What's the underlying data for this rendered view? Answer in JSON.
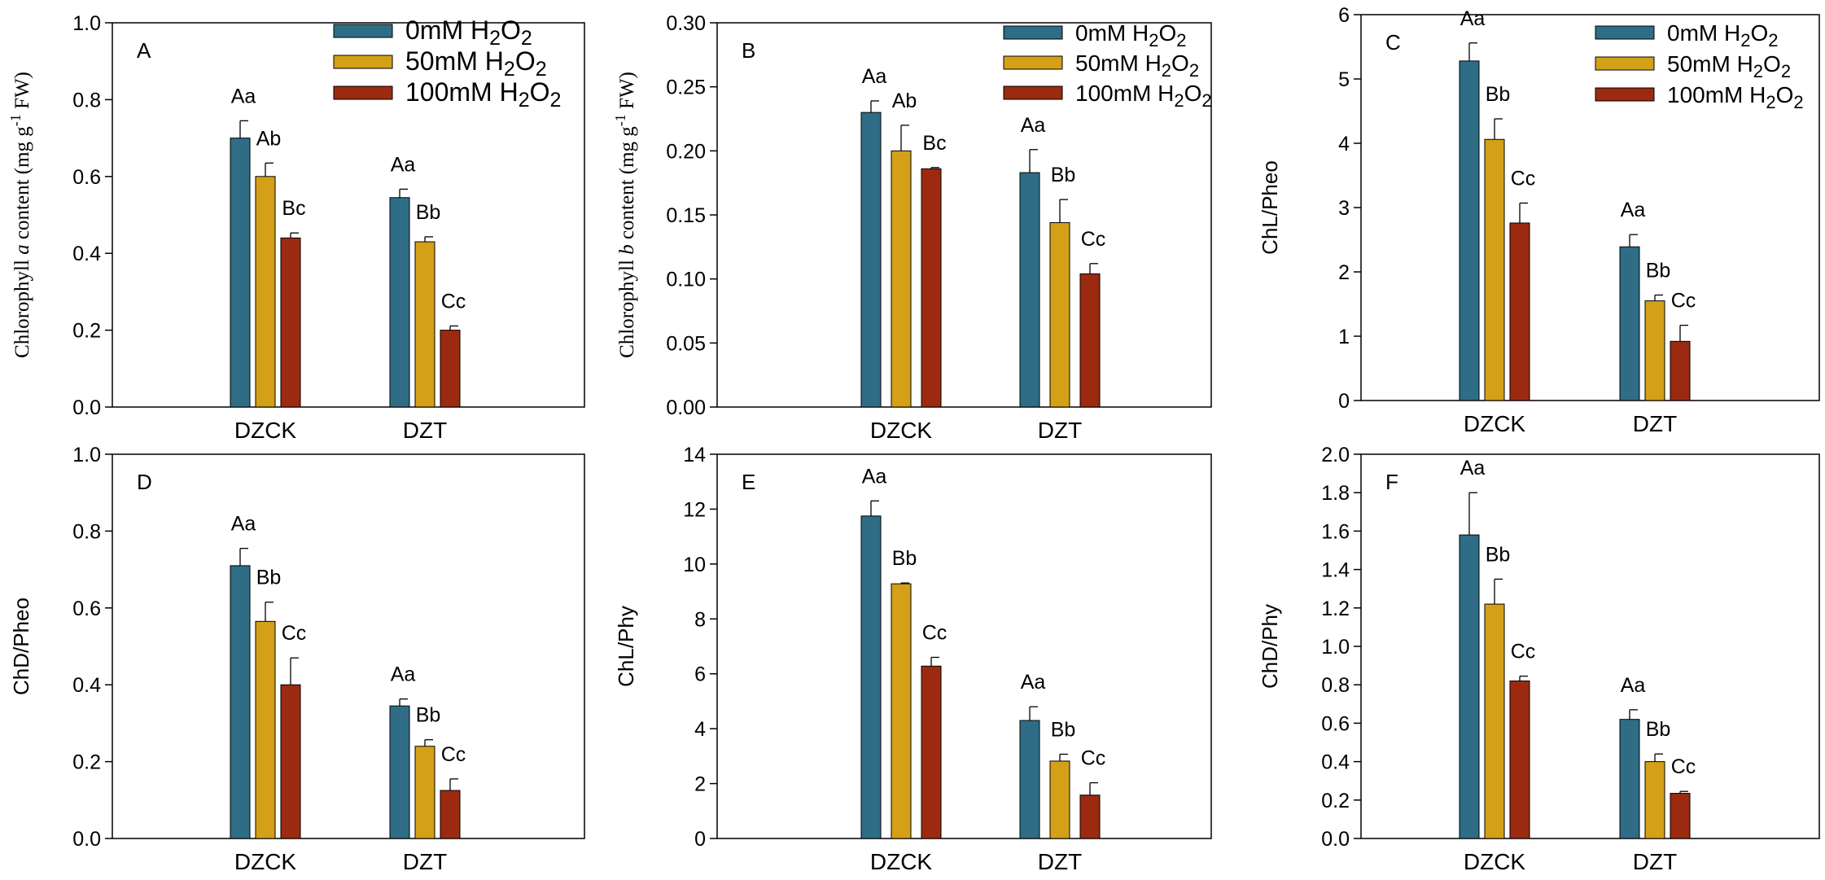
{
  "colors": {
    "c0": "#2f6d86",
    "c1": "#d4a017",
    "c2": "#9c2a10",
    "axis": "#000000"
  },
  "chart_data": [
    {
      "panel": "A",
      "type": "bar",
      "categories": [
        "DZCK",
        "DZT"
      ],
      "ylabel_parts": [
        "Chlorophyll ",
        "a",
        " content  (mg g",
        "-1",
        " FW)"
      ],
      "ylim": [
        0,
        1.0
      ],
      "yticks": [
        "0.0",
        "0.2",
        "0.4",
        "0.6",
        "0.8",
        "1.0"
      ],
      "legend": [
        {
          "prefix": "0mM H",
          "s1": "2",
          "mid": "O",
          "s2": "2"
        },
        {
          "prefix": "50mM H",
          "s1": "2",
          "mid": "O",
          "s2": "2"
        },
        {
          "prefix": "100mM H",
          "s1": "2",
          "mid": "O",
          "s2": "2"
        }
      ],
      "series": [
        {
          "name": "0mM H2O2",
          "values": [
            0.7,
            0.545
          ],
          "errors": [
            0.045,
            0.022
          ],
          "labels": [
            "Aa",
            "Aa"
          ]
        },
        {
          "name": "50mM H2O2",
          "values": [
            0.6,
            0.43
          ],
          "errors": [
            0.035,
            0.013
          ],
          "labels": [
            "Ab",
            "Bb"
          ]
        },
        {
          "name": "100mM H2O2",
          "values": [
            0.44,
            0.2
          ],
          "errors": [
            0.013,
            0.011
          ],
          "labels": [
            "Bc",
            "Cc"
          ]
        }
      ]
    },
    {
      "panel": "B",
      "type": "bar",
      "categories": [
        "DZCK",
        "DZT"
      ],
      "ylabel_parts": [
        "Chlorophyll ",
        "b",
        " content  (mg g",
        "-1",
        " FW)"
      ],
      "ylim": [
        0,
        0.3
      ],
      "yticks": [
        "0.00",
        "0.05",
        "0.10",
        "0.15",
        "0.20",
        "0.25",
        "0.30"
      ],
      "legend": [
        {
          "prefix": "0mM H",
          "s1": "2",
          "mid": "O",
          "s2": "2"
        },
        {
          "prefix": "50mM H",
          "s1": "2",
          "mid": "O",
          "s2": "2"
        },
        {
          "prefix": "100mM H",
          "s1": "2",
          "mid": "O",
          "s2": "2"
        }
      ],
      "series": [
        {
          "name": "0mM H2O2",
          "values": [
            0.23,
            0.183
          ],
          "errors": [
            0.009,
            0.018
          ],
          "labels": [
            "Aa",
            "Aa"
          ]
        },
        {
          "name": "50mM H2O2",
          "values": [
            0.2,
            0.144
          ],
          "errors": [
            0.02,
            0.018
          ],
          "labels": [
            "Ab",
            "Bb"
          ]
        },
        {
          "name": "100mM H2O2",
          "values": [
            0.186,
            0.104
          ],
          "errors": [
            0.001,
            0.008
          ],
          "labels": [
            "Bc",
            "Cc"
          ]
        }
      ]
    },
    {
      "panel": "C",
      "type": "bar",
      "categories": [
        "DZCK",
        "DZT"
      ],
      "ylabel_parts": [
        "ChL/Pheo"
      ],
      "ylim": [
        0,
        6
      ],
      "yticks": [
        "0",
        "1",
        "2",
        "3",
        "4",
        "5",
        "6"
      ],
      "legend": [
        {
          "prefix": "0mM H",
          "s1": "2",
          "mid": "O",
          "s2": "2"
        },
        {
          "prefix": "50mM H",
          "s1": "2",
          "mid": "O",
          "s2": "2"
        },
        {
          "prefix": "100mM H",
          "s1": "2",
          "mid": "O",
          "s2": "2"
        }
      ],
      "series": [
        {
          "name": "0mM H2O2",
          "values": [
            5.28,
            2.39
          ],
          "errors": [
            0.28,
            0.19
          ],
          "labels": [
            "Aa",
            "Aa"
          ]
        },
        {
          "name": "50mM H2O2",
          "values": [
            4.06,
            1.55
          ],
          "errors": [
            0.32,
            0.09
          ],
          "labels": [
            "Bb",
            "Bb"
          ]
        },
        {
          "name": "100mM H2O2",
          "values": [
            2.76,
            0.92
          ],
          "errors": [
            0.31,
            0.25
          ],
          "labels": [
            "Cc",
            "Cc"
          ]
        }
      ]
    },
    {
      "panel": "D",
      "type": "bar",
      "categories": [
        "DZCK",
        "DZT"
      ],
      "ylabel_parts": [
        "ChD/Pheo"
      ],
      "ylim": [
        0,
        1.0
      ],
      "yticks": [
        "0.0",
        "0.2",
        "0.4",
        "0.6",
        "0.8",
        "1.0"
      ],
      "legend": [],
      "series": [
        {
          "name": "0mM H2O2",
          "values": [
            0.71,
            0.345
          ],
          "errors": [
            0.045,
            0.018
          ],
          "labels": [
            "Aa",
            "Aa"
          ]
        },
        {
          "name": "50mM H2O2",
          "values": [
            0.565,
            0.24
          ],
          "errors": [
            0.05,
            0.017
          ],
          "labels": [
            "Bb",
            "Bb"
          ]
        },
        {
          "name": "100mM H2O2",
          "values": [
            0.4,
            0.125
          ],
          "errors": [
            0.07,
            0.03
          ],
          "labels": [
            "Cc",
            "Cc"
          ]
        }
      ]
    },
    {
      "panel": "E",
      "type": "bar",
      "categories": [
        "DZCK",
        "DZT"
      ],
      "ylabel_parts": [
        "ChL/Phy"
      ],
      "ylim": [
        0,
        14
      ],
      "yticks": [
        "0",
        "2",
        "4",
        "6",
        "8",
        "10",
        "12",
        "14"
      ],
      "legend": [],
      "series": [
        {
          "name": "0mM H2O2",
          "values": [
            11.75,
            4.3
          ],
          "errors": [
            0.55,
            0.5
          ],
          "labels": [
            "Aa",
            "Aa"
          ]
        },
        {
          "name": "50mM H2O2",
          "values": [
            9.28,
            2.82
          ],
          "errors": [
            0.03,
            0.25
          ],
          "labels": [
            "Bb",
            "Bb"
          ]
        },
        {
          "name": "100mM H2O2",
          "values": [
            6.28,
            1.58
          ],
          "errors": [
            0.32,
            0.45
          ],
          "labels": [
            "Cc",
            "Cc"
          ]
        }
      ]
    },
    {
      "panel": "F",
      "type": "bar",
      "categories": [
        "DZCK",
        "DZT"
      ],
      "ylabel_parts": [
        "ChD/Phy"
      ],
      "ylim": [
        0,
        2.0
      ],
      "yticks": [
        "0.0",
        "0.2",
        "0.4",
        "0.6",
        "0.8",
        "1.0",
        "1.2",
        "1.4",
        "1.6",
        "1.8",
        "2.0"
      ],
      "legend": [],
      "series": [
        {
          "name": "0mM H2O2",
          "values": [
            1.58,
            0.62
          ],
          "errors": [
            0.22,
            0.05
          ],
          "labels": [
            "Aa",
            "Aa"
          ]
        },
        {
          "name": "50mM H2O2",
          "values": [
            1.22,
            0.4
          ],
          "errors": [
            0.13,
            0.04
          ],
          "labels": [
            "Bb",
            "Bb"
          ]
        },
        {
          "name": "100mM H2O2",
          "values": [
            0.82,
            0.235
          ],
          "errors": [
            0.025,
            0.01
          ],
          "labels": [
            "Cc",
            "Cc"
          ]
        }
      ]
    }
  ]
}
